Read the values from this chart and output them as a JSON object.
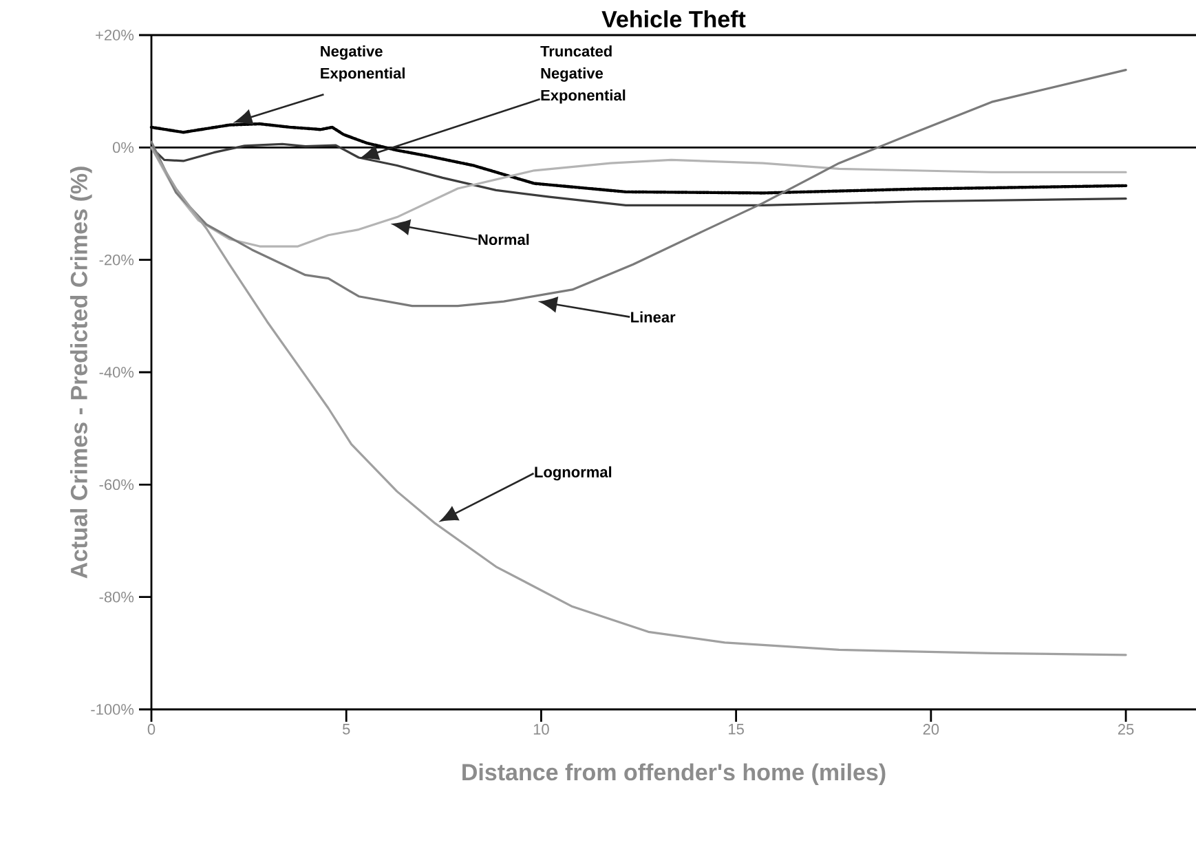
{
  "chart_data": {
    "type": "line",
    "title": "Vehicle Theft",
    "xlabel": "Distance from offender's home (miles)",
    "ylabel": "Actual Crimes - Predicted Crimes (%)",
    "xlim": [
      0,
      26.8
    ],
    "ylim": [
      -100,
      20
    ],
    "xticks": [
      0,
      5,
      10,
      15,
      20,
      25
    ],
    "yticks": [
      {
        "value": 20,
        "label": "+20%"
      },
      {
        "value": 0,
        "label": "0%"
      },
      {
        "value": -20,
        "label": "-20%"
      },
      {
        "value": -40,
        "label": "-40%"
      },
      {
        "value": -60,
        "label": "-60%"
      },
      {
        "value": -80,
        "label": "-80%"
      },
      {
        "value": -100,
        "label": "-100%"
      }
    ],
    "grid": false,
    "ref_lines": [
      {
        "axis": "y",
        "value": 0,
        "color": "#000000"
      }
    ],
    "series": [
      {
        "color": "#000000",
        "line_style": "dotted",
        "x": [
          0,
          0.82,
          2.0,
          2.78,
          3.56,
          4.34,
          4.64,
          4.93,
          5.52,
          6.3,
          7.08,
          8.26,
          9.82,
          12.17,
          15.7,
          19.6,
          25
        ],
        "values": [
          3.6,
          2.7,
          4,
          4.2,
          3.6,
          3.2,
          3.6,
          2.3,
          0.8,
          -0.5,
          -1.5,
          -3.2,
          -6.4,
          -7.9,
          -8.1,
          -7.4,
          -6.8
        ]
      },
      {
        "color": "#3c3c3c",
        "line_style": "solid",
        "x": [
          0,
          0.33,
          0.82,
          1.6,
          2.39,
          3.36,
          3.95,
          4.73,
          5.32,
          6.3,
          7.47,
          8.84,
          10.21,
          12.17,
          15.69,
          19.6,
          25
        ],
        "values": [
          0,
          -2.2,
          -2.4,
          -0.9,
          0.3,
          0.6,
          0.2,
          0.4,
          -1.8,
          -3.2,
          -5.4,
          -7.6,
          -8.8,
          -10.3,
          -10.3,
          -9.6,
          -9.1
        ]
      },
      {
        "color": "#b4b4b4",
        "line_style": "solid",
        "x": [
          0,
          0.63,
          1.21,
          2.0,
          2.78,
          3.76,
          4.54,
          5.32,
          6.3,
          7.86,
          9.82,
          11.78,
          13.34,
          15.69,
          17.64,
          21.56,
          25
        ],
        "values": [
          0,
          -8,
          -13,
          -16.3,
          -17.6,
          -17.6,
          -15.6,
          -14.6,
          -12.4,
          -7.3,
          -4.1,
          -2.8,
          -2.2,
          -2.8,
          -3.8,
          -4.4,
          -4.4
        ]
      },
      {
        "color": "#7a7a7a",
        "line_style": "solid",
        "x": [
          0,
          0.63,
          1.41,
          2.58,
          3.95,
          4.54,
          5.32,
          6.69,
          7.86,
          9.04,
          10.8,
          12.36,
          14.12,
          15.69,
          17.64,
          19.6,
          21.56,
          25
        ],
        "values": [
          1,
          -8,
          -13.7,
          -18.2,
          -22.7,
          -23.3,
          -26.5,
          -28.2,
          -28.2,
          -27.4,
          -25.3,
          -20.8,
          -15,
          -9.9,
          -2.8,
          2.7,
          8.1,
          13.8
        ]
      },
      {
        "color": "#a0a0a0",
        "line_style": "solid",
        "x": [
          0,
          0.63,
          1.41,
          2.0,
          2.97,
          3.95,
          4.54,
          5.13,
          6.3,
          7.28,
          8.84,
          10.8,
          12.75,
          14.71,
          17.64,
          21.56,
          25
        ],
        "values": [
          0,
          -7.3,
          -14.4,
          -20.8,
          -31,
          -40.6,
          -46.4,
          -52.8,
          -61.2,
          -66.9,
          -74.6,
          -81.7,
          -86.2,
          -88.1,
          -89.4,
          -90,
          -90.3
        ]
      }
    ],
    "annotations": [
      "Negative Exponential",
      "Truncated Negative Exponential",
      "Normal",
      "Linear",
      "Lognormal"
    ]
  }
}
